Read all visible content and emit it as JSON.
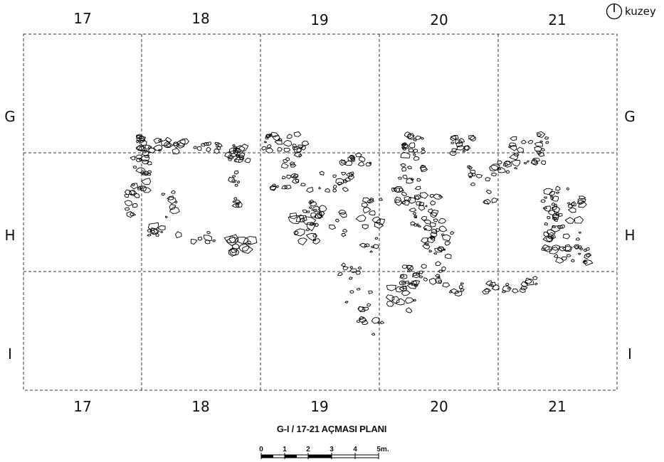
{
  "columns": [
    "17",
    "18",
    "19",
    "20",
    "21"
  ],
  "rows": [
    "G",
    "H",
    "I"
  ],
  "north": {
    "label": "kuzey",
    "icon": "north-arrow-icon"
  },
  "title": "G-I / 17-21 AÇMASI PLANI",
  "scale": {
    "ticks": [
      "0",
      "1",
      "2",
      "3",
      "4",
      "5m."
    ]
  }
}
